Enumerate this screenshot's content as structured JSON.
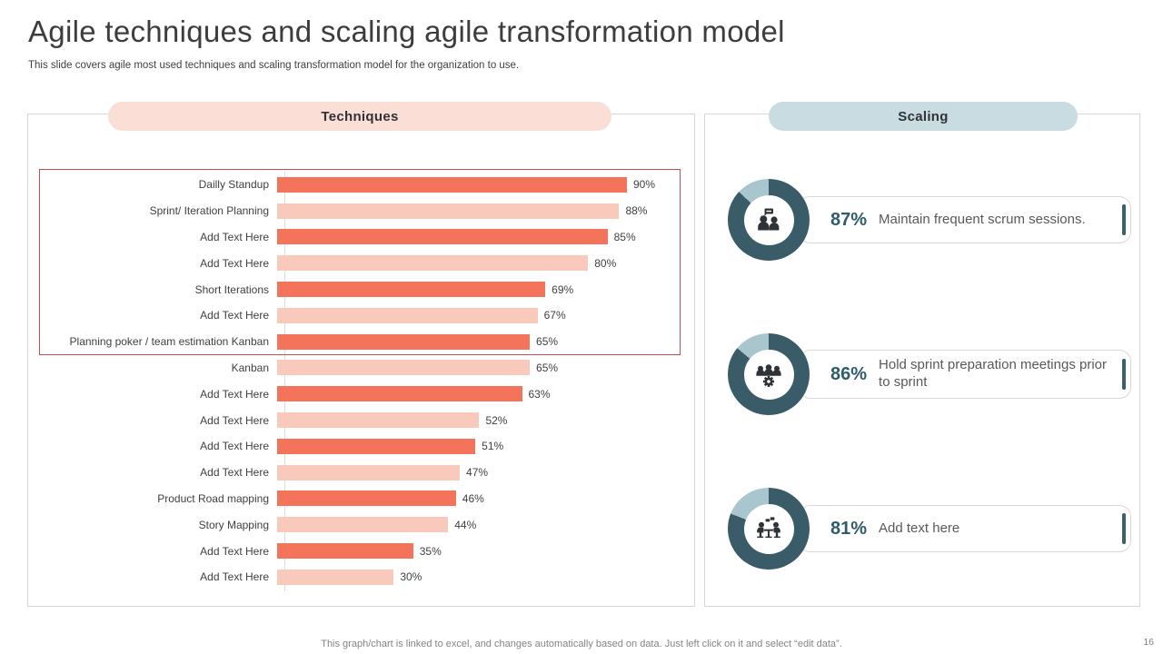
{
  "slide": {
    "title": "Agile techniques and scaling agile transformation model",
    "subtitle": "This slide covers agile most used techniques and scaling transformation model for the organization to use.",
    "footer_note": "This graph/chart is linked to excel, and changes automatically based on data. Just left click on it and select “edit data”.",
    "page_number": "16"
  },
  "techniques_panel": {
    "header": "Techniques",
    "header_bg": "#fbded6"
  },
  "scaling_panel": {
    "header": "Scaling",
    "header_bg": "#c9dce1",
    "items": [
      {
        "percent": "87%",
        "value": 87,
        "text": "Maintain frequent scrum sessions.",
        "icon": "scrum-discussion-icon"
      },
      {
        "percent": "86%",
        "value": 86,
        "text": "Hold sprint preparation meetings prior to sprint",
        "icon": "team-gear-icon"
      },
      {
        "percent": "81%",
        "value": 81,
        "text": "Add text here",
        "icon": "meeting-table-icon"
      }
    ]
  },
  "chart_data": [
    {
      "type": "bar",
      "orientation": "horizontal",
      "title": "Techniques",
      "categories": [
        "Dailly Standup",
        "Sprint/ Iteration Planning",
        "Add Text Here",
        "Add Text Here",
        "Short Iterations",
        "Add Text Here",
        "Planning poker / team estimation Kanban",
        "Kanban",
        "Add Text Here",
        "Add Text Here",
        "Add Text Here",
        "Add Text Here",
        "Product Road mapping",
        "Story Mapping",
        "Add Text Here",
        "Add Text Here"
      ],
      "values": [
        90,
        88,
        85,
        80,
        69,
        67,
        65,
        65,
        63,
        52,
        51,
        47,
        46,
        44,
        35,
        30
      ],
      "value_labels": [
        "90%",
        "88%",
        "85%",
        "80%",
        "69%",
        "67%",
        "65%",
        "65%",
        "63%",
        "52%",
        "51%",
        "47%",
        "46%",
        "44%",
        "35%",
        "30%"
      ],
      "xlim": [
        0,
        100
      ],
      "grid": false,
      "bar_colors_alternating": [
        "#f4745b",
        "#f9c9bb"
      ],
      "highlight_box": {
        "rows_covered": [
          0,
          6
        ],
        "border_color": "#c0504d"
      }
    },
    {
      "type": "donut-set",
      "series": [
        {
          "name": "Maintain frequent scrum sessions.",
          "value": 87
        },
        {
          "name": "Hold sprint preparation meetings prior to sprint",
          "value": 86
        },
        {
          "name": "Add text here",
          "value": 81
        }
      ],
      "ring_colors": {
        "filled": "#3a5b68",
        "remainder": "#a9c6ce"
      }
    }
  ],
  "colors": {
    "bar_dark": "#f4745b",
    "bar_light": "#f9c9bb",
    "highlight_border": "#c0504d",
    "donut_dark": "#3a5b68",
    "donut_light": "#a9c6ce",
    "percent_text": "#2e5c6b",
    "accent_bar": "#39606c",
    "techniques_pill": "#fbded6",
    "scaling_pill": "#c9dce1",
    "icon_color": "#2e3338"
  }
}
